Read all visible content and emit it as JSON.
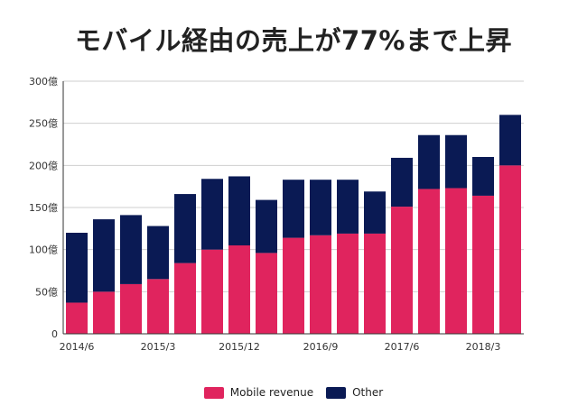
{
  "chart_data": {
    "type": "bar",
    "stacked": true,
    "title": "モバイル経由の売上が77%まで上昇",
    "xlabel": "",
    "ylabel": "",
    "ylim": [
      0,
      300
    ],
    "y_ticks": [
      "0",
      "50億",
      "100億",
      "150億",
      "200億",
      "250億",
      "300億"
    ],
    "y_tick_values": [
      0,
      50,
      100,
      150,
      200,
      250,
      300
    ],
    "categories": [
      "2014/6",
      "2014/9",
      "2014/12",
      "2015/3",
      "2015/6",
      "2015/9",
      "2015/12",
      "2016/3",
      "2016/6",
      "2016/9",
      "2016/12",
      "2017/3",
      "2017/6",
      "2017/9",
      "2017/12",
      "2018/3",
      "2018/6"
    ],
    "x_tick_labels": [
      {
        "category": "2014/6",
        "label": "2014/6"
      },
      {
        "category": "2015/3",
        "label": "2015/3"
      },
      {
        "category": "2015/12",
        "label": "2015/12"
      },
      {
        "category": "2016/9",
        "label": "2016/9"
      },
      {
        "category": "2017/6",
        "label": "2017/6"
      },
      {
        "category": "2018/3",
        "label": "2018/3"
      }
    ],
    "series": [
      {
        "name": "Mobile revenue",
        "color": "#E0245E",
        "values": [
          37,
          50,
          59,
          65,
          84,
          100,
          105,
          96,
          114,
          117,
          119,
          119,
          151,
          172,
          173,
          164,
          200
        ]
      },
      {
        "name": "Other",
        "color": "#0A1A54",
        "values": [
          83,
          86,
          82,
          63,
          82,
          84,
          82,
          63,
          69,
          66,
          64,
          50,
          58,
          64,
          63,
          46,
          60
        ]
      }
    ],
    "grid": true,
    "legend_position": "bottom"
  }
}
